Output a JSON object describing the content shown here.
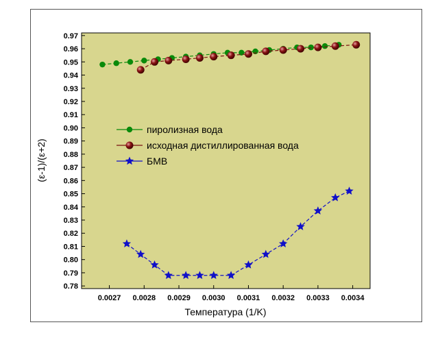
{
  "chart_data": {
    "type": "line",
    "xlabel": "Температура (1/K)",
    "ylabel": "(ε-1)/(ε+2)",
    "xlim": [
      0.00262,
      0.00345
    ],
    "ylim": [
      0.778,
      0.972
    ],
    "x_ticks": [
      "0.0027",
      "0.0028",
      "0.0029",
      "0.0030",
      "0.0031",
      "0.0032",
      "0.0033",
      "0.0034"
    ],
    "x_tick_values": [
      0.0027,
      0.0028,
      0.0029,
      0.003,
      0.0031,
      0.0032,
      0.0033,
      0.0034
    ],
    "y_ticks": [
      "0.78",
      "0.79",
      "0.80",
      "0.81",
      "0.82",
      "0.83",
      "0.84",
      "0.85",
      "0.86",
      "0.87",
      "0.88",
      "0.89",
      "0.90",
      "0.91",
      "0.92",
      "0.93",
      "0.94",
      "0.95",
      "0.96",
      "0.97"
    ],
    "y_tick_values": [
      0.78,
      0.79,
      0.8,
      0.81,
      0.82,
      0.83,
      0.84,
      0.85,
      0.86,
      0.87,
      0.88,
      0.89,
      0.9,
      0.91,
      0.92,
      0.93,
      0.94,
      0.95,
      0.96,
      0.97
    ],
    "plot_background": "#d8d68e",
    "legend_position": "center-left",
    "series": [
      {
        "name": "пиролизная вода",
        "color": "#0a8a0a",
        "marker": "circle",
        "line": "dashed",
        "x": [
          0.00268,
          0.00272,
          0.00276,
          0.0028,
          0.00284,
          0.00288,
          0.00292,
          0.00296,
          0.003,
          0.00304,
          0.00308,
          0.00312,
          0.00316,
          0.0032,
          0.00324,
          0.00328,
          0.00332,
          0.00336
        ],
        "y": [
          0.948,
          0.949,
          0.95,
          0.951,
          0.952,
          0.953,
          0.954,
          0.955,
          0.956,
          0.957,
          0.957,
          0.958,
          0.959,
          0.96,
          0.961,
          0.961,
          0.962,
          0.963
        ]
      },
      {
        "name": "исходная дистиллированная вода",
        "color": "#7a1010",
        "marker": "ball",
        "line": "dashed",
        "x": [
          0.00279,
          0.00283,
          0.00287,
          0.00292,
          0.00296,
          0.003,
          0.00305,
          0.0031,
          0.00315,
          0.0032,
          0.00325,
          0.0033,
          0.00335,
          0.00341
        ],
        "y": [
          0.944,
          0.95,
          0.951,
          0.952,
          0.953,
          0.954,
          0.955,
          0.956,
          0.958,
          0.959,
          0.96,
          0.961,
          0.962,
          0.963
        ]
      },
      {
        "name": "БМВ",
        "color": "#1010c8",
        "marker": "star",
        "line": "dashed",
        "x": [
          0.00275,
          0.00279,
          0.00283,
          0.00287,
          0.00292,
          0.00296,
          0.003,
          0.00305,
          0.0031,
          0.00315,
          0.0032,
          0.00325,
          0.0033,
          0.00335,
          0.00339
        ],
        "y": [
          0.812,
          0.804,
          0.796,
          0.788,
          0.788,
          0.788,
          0.788,
          0.788,
          0.796,
          0.804,
          0.812,
          0.825,
          0.837,
          0.847,
          0.852
        ]
      }
    ]
  }
}
